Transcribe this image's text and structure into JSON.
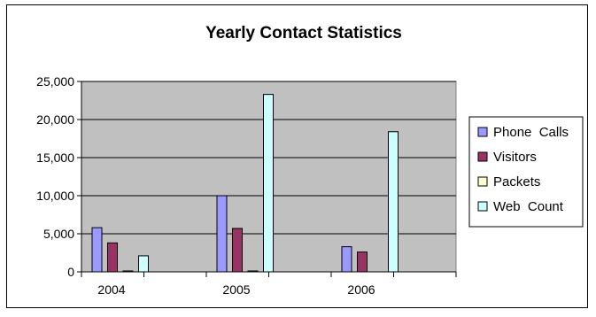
{
  "chart_data": {
    "type": "bar",
    "title": "Yearly Contact Statistics",
    "xlabel": "",
    "ylabel": "",
    "categories": [
      "2004",
      "2005",
      "2006"
    ],
    "ylim": [
      0,
      25000
    ],
    "yticks": [
      0,
      5000,
      10000,
      15000,
      20000,
      25000
    ],
    "ytick_labels": [
      "0",
      "5,000",
      "10,000",
      "15,000",
      "20,000",
      "25,000"
    ],
    "grid": true,
    "legend_position": "right",
    "series": [
      {
        "name": "Phone  Calls",
        "color": "#9999ff",
        "values": [
          5800,
          10000,
          3300
        ]
      },
      {
        "name": "Visitors",
        "color": "#993366",
        "values": [
          3800,
          5700,
          2600
        ]
      },
      {
        "name": "Packets",
        "color": "#ffffcc",
        "values": [
          120,
          120,
          0
        ]
      },
      {
        "name": "Web  Count",
        "color": "#ccffff",
        "values": [
          2100,
          23300,
          18400
        ]
      }
    ],
    "plot_background": "#c0c0c0"
  }
}
